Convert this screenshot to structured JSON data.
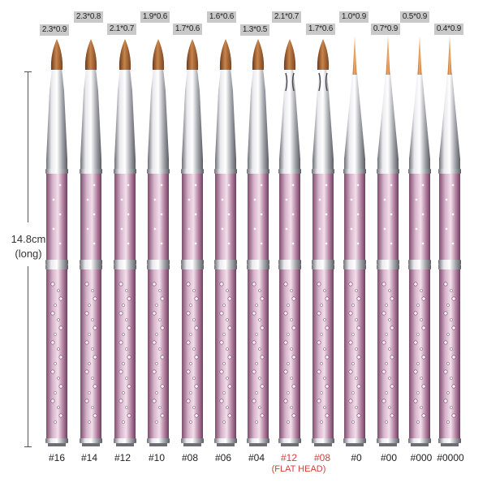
{
  "dimension": {
    "length": "14.8cm",
    "note": "(long)"
  },
  "brushes": [
    {
      "number": "#16",
      "size": "2.3*0.9",
      "tip": "round",
      "highlight": false
    },
    {
      "number": "#14",
      "size": "2.3*0.8",
      "tip": "round",
      "highlight": false
    },
    {
      "number": "#12",
      "size": "2.1*0.7",
      "tip": "round",
      "highlight": false
    },
    {
      "number": "#10",
      "size": "1.9*0.6",
      "tip": "round",
      "highlight": false
    },
    {
      "number": "#08",
      "size": "1.7*0.6",
      "tip": "round",
      "highlight": false
    },
    {
      "number": "#06",
      "size": "1.6*0.6",
      "tip": "round",
      "highlight": false
    },
    {
      "number": "#04",
      "size": "1.3*0.5",
      "tip": "round",
      "highlight": false
    },
    {
      "number": "#12",
      "size": "2.1*0.7",
      "tip": "flat",
      "highlight": true
    },
    {
      "number": "#08",
      "size": "1.7*0.6",
      "tip": "flat",
      "highlight": true
    },
    {
      "number": "#0",
      "size": "1.0*0.9",
      "tip": "liner",
      "highlight": false
    },
    {
      "number": "#00",
      "size": "0.7*0.9",
      "tip": "liner",
      "highlight": false
    },
    {
      "number": "#000",
      "size": "0.5*0.9",
      "tip": "liner",
      "highlight": false
    },
    {
      "number": "#0000",
      "size": "0.4*0.9",
      "tip": "liner",
      "highlight": false
    }
  ],
  "flat_head_note": "(FLAT HEAD)",
  "colors": {
    "handle": "#c79ab7",
    "handle_dark": "#8a5a7a",
    "ferrule": "#c8c8cc",
    "bristle": "#a8683a",
    "liner_bristle": "#e09a50",
    "highlight_text": "#d0403c"
  }
}
